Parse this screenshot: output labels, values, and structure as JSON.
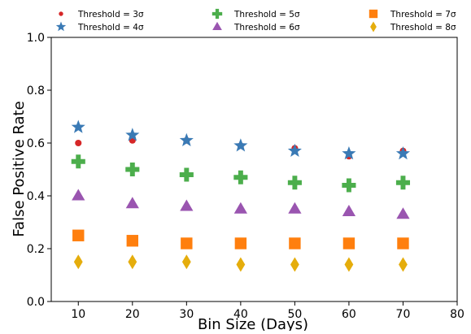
{
  "chart_data": {
    "type": "scatter",
    "title": "",
    "xlabel": "Bin Size (Days)",
    "ylabel": "False Positive Rate",
    "xlim": [
      5,
      80
    ],
    "ylim": [
      0.0,
      1.0
    ],
    "x_ticks": [
      10,
      20,
      30,
      40,
      50,
      60,
      70,
      80
    ],
    "y_ticks": [
      0.0,
      0.2,
      0.4,
      0.6,
      0.8,
      1.0
    ],
    "x_tick_labels": [
      "10",
      "20",
      "30",
      "40",
      "50",
      "60",
      "70",
      "80"
    ],
    "y_tick_labels": [
      "0.0",
      "0.2",
      "0.4",
      "0.6",
      "0.8",
      "1.0"
    ],
    "grid": false,
    "legend_position": "top",
    "x": [
      10,
      20,
      30,
      40,
      50,
      60,
      70
    ],
    "series": [
      {
        "name": "Threshold = 3σ",
        "marker": "circle",
        "color": "#d62728",
        "values": [
          0.6,
          0.61,
          0.61,
          0.59,
          0.58,
          0.55,
          0.57
        ]
      },
      {
        "name": "Threshold = 4σ",
        "marker": "star",
        "color": "#3a7ab5",
        "values": [
          0.66,
          0.63,
          0.61,
          0.59,
          0.57,
          0.56,
          0.56
        ]
      },
      {
        "name": "Threshold = 5σ",
        "marker": "plus",
        "color": "#4cae4c",
        "values": [
          0.53,
          0.5,
          0.48,
          0.47,
          0.45,
          0.44,
          0.45
        ]
      },
      {
        "name": "Threshold = 6σ",
        "marker": "triangle",
        "color": "#9a55b0",
        "values": [
          0.4,
          0.37,
          0.36,
          0.35,
          0.35,
          0.34,
          0.33
        ]
      },
      {
        "name": "Threshold = 7σ",
        "marker": "square",
        "color": "#ff7f0e",
        "values": [
          0.25,
          0.23,
          0.22,
          0.22,
          0.22,
          0.22,
          0.22
        ]
      },
      {
        "name": "Threshold = 8σ",
        "marker": "diamond",
        "color": "#e5ad0c",
        "values": [
          0.15,
          0.15,
          0.15,
          0.14,
          0.14,
          0.14,
          0.14
        ]
      }
    ]
  }
}
